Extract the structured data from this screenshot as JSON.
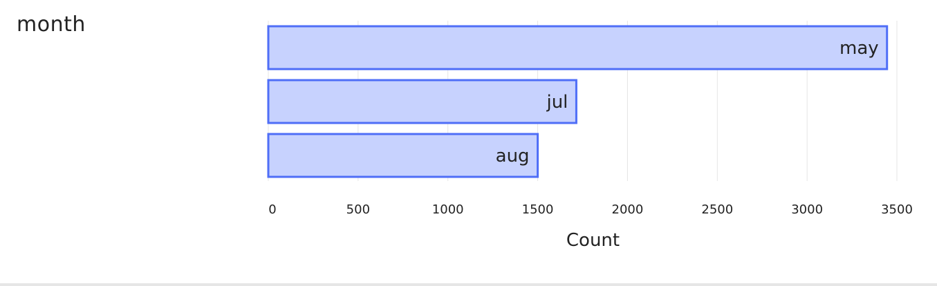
{
  "field_label": "month",
  "chart_data": {
    "type": "bar",
    "orientation": "horizontal",
    "categories": [
      "may",
      "jul",
      "aug"
    ],
    "values": [
      3445,
      1715,
      1500
    ],
    "xlabel": "Count",
    "xlim": [
      0,
      3500
    ],
    "xticks": [
      0,
      500,
      1000,
      1500,
      2000,
      2500,
      3000,
      3500
    ],
    "grid": true,
    "colors": {
      "bar_fill": "#c7d2fe",
      "bar_stroke": "#4f6ef7",
      "grid": "#e5e5e5",
      "text": "#222222"
    }
  }
}
